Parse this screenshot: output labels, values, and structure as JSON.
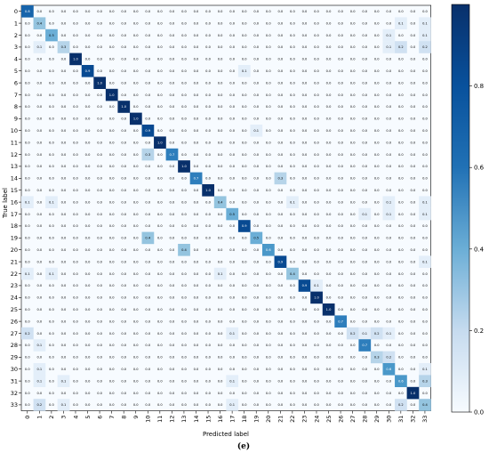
{
  "chart_data": {
    "type": "heatmap",
    "xlabel": "Predicted label",
    "ylabel": "True label",
    "caption": "(e)",
    "x_categories": [
      "0",
      "1",
      "2",
      "3",
      "4",
      "5",
      "6",
      "7",
      "8",
      "9",
      "10",
      "11",
      "12",
      "13",
      "14",
      "15",
      "16",
      "17",
      "18",
      "19",
      "20",
      "21",
      "22",
      "23",
      "24",
      "25",
      "26",
      "27",
      "28",
      "29",
      "30",
      "31",
      "32",
      "33"
    ],
    "y_categories": [
      "0",
      "1",
      "2",
      "3",
      "4",
      "5",
      "6",
      "7",
      "8",
      "9",
      "10",
      "11",
      "12",
      "13",
      "14",
      "15",
      "16",
      "17",
      "18",
      "19",
      "20",
      "21",
      "22",
      "23",
      "24",
      "25",
      "26",
      "27",
      "28",
      "29",
      "30",
      "31",
      "32",
      "33"
    ],
    "colorbar": {
      "min": 0.0,
      "max": 1.0,
      "ticks": [
        0.0,
        0.2,
        0.4,
        0.6,
        0.8
      ],
      "low_color": "#f7fbff",
      "high_color": "#08306b"
    },
    "cells": [
      [
        0,
        0,
        0.8
      ],
      [
        1,
        1,
        0.4
      ],
      [
        1,
        31,
        0.1
      ],
      [
        1,
        33,
        0.1
      ],
      [
        2,
        2,
        0.5
      ],
      [
        2,
        30,
        0.1
      ],
      [
        2,
        33,
        0.1
      ],
      [
        3,
        1,
        0.1
      ],
      [
        3,
        3,
        0.3
      ],
      [
        3,
        30,
        0.1
      ],
      [
        3,
        31,
        0.2
      ],
      [
        3,
        33,
        0.2
      ],
      [
        4,
        4,
        1.0
      ],
      [
        5,
        5,
        0.9
      ],
      [
        5,
        18,
        0.1
      ],
      [
        6,
        6,
        1.0
      ],
      [
        7,
        7,
        1.0
      ],
      [
        8,
        8,
        1.0
      ],
      [
        9,
        9,
        1.0
      ],
      [
        10,
        10,
        0.9
      ],
      [
        10,
        19,
        0.1
      ],
      [
        11,
        11,
        1.0
      ],
      [
        12,
        10,
        0.3
      ],
      [
        12,
        12,
        0.7
      ],
      [
        13,
        13,
        1.0
      ],
      [
        14,
        14,
        0.7
      ],
      [
        14,
        21,
        0.3
      ],
      [
        15,
        15,
        1.0
      ],
      [
        16,
        0,
        0.1
      ],
      [
        16,
        2,
        0.1
      ],
      [
        16,
        16,
        0.4
      ],
      [
        16,
        22,
        0.1
      ],
      [
        16,
        30,
        0.1
      ],
      [
        16,
        33,
        0.1
      ],
      [
        17,
        17,
        0.5
      ],
      [
        17,
        28,
        0.1
      ],
      [
        17,
        30,
        0.1
      ],
      [
        17,
        33,
        0.1
      ],
      [
        18,
        18,
        0.9
      ],
      [
        19,
        10,
        0.4
      ],
      [
        19,
        19,
        0.5
      ],
      [
        20,
        13,
        0.4
      ],
      [
        20,
        20,
        0.6
      ],
      [
        21,
        21,
        0.9
      ],
      [
        21,
        33,
        0.1
      ],
      [
        22,
        0,
        0.1
      ],
      [
        22,
        2,
        0.1
      ],
      [
        22,
        16,
        0.1
      ],
      [
        22,
        22,
        0.4
      ],
      [
        23,
        23,
        0.9
      ],
      [
        23,
        24,
        0.1
      ],
      [
        24,
        24,
        1.0
      ],
      [
        25,
        25,
        1.0
      ],
      [
        26,
        26,
        0.7
      ],
      [
        27,
        0,
        0.2
      ],
      [
        27,
        17,
        0.1
      ],
      [
        27,
        27,
        0.2
      ],
      [
        27,
        28,
        0.1
      ],
      [
        27,
        29,
        0.2
      ],
      [
        27,
        30,
        0.1
      ],
      [
        28,
        1,
        0.1
      ],
      [
        28,
        28,
        0.7
      ],
      [
        29,
        29,
        0.3
      ],
      [
        29,
        30,
        0.2
      ],
      [
        30,
        1,
        0.1
      ],
      [
        30,
        30,
        0.6
      ],
      [
        30,
        33,
        0.1
      ],
      [
        31,
        1,
        0.1
      ],
      [
        31,
        3,
        0.1
      ],
      [
        31,
        17,
        0.1
      ],
      [
        31,
        31,
        0.6
      ],
      [
        31,
        33,
        0.3
      ],
      [
        32,
        32,
        1.0
      ],
      [
        33,
        1,
        0.2
      ],
      [
        33,
        3,
        0.1
      ],
      [
        33,
        17,
        0.1
      ],
      [
        33,
        31,
        0.2
      ],
      [
        33,
        33,
        0.4
      ]
    ]
  }
}
